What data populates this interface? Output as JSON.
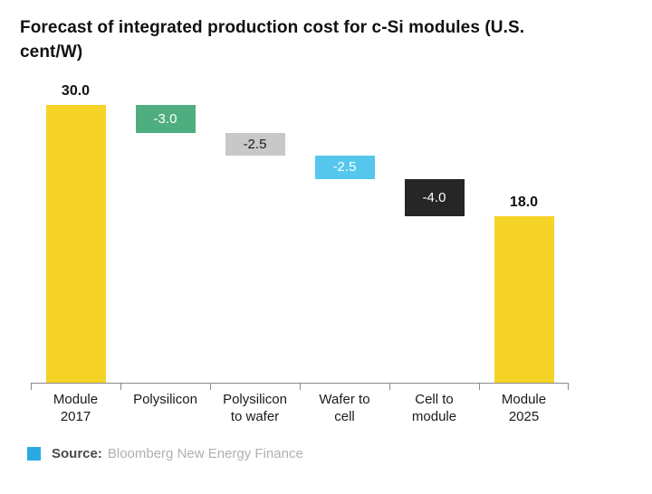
{
  "title": "Forecast of integrated production cost for c-Si modules (U.S. cent/W)",
  "chart_data": {
    "type": "bar",
    "subtype": "waterfall",
    "title": "Forecast of integrated production cost for c-Si modules (U.S. cent/W)",
    "categories": [
      "Module\n2017",
      "Polysilicon",
      "Polysilicon\nto wafer",
      "Wafer to\ncell",
      "Cell to\nmodule",
      "Module\n2025"
    ],
    "values": [
      30.0,
      -3.0,
      -2.5,
      -2.5,
      -4.0,
      18.0
    ],
    "labels": [
      "30.0",
      "-3.0",
      "-2.5",
      "-2.5",
      "-4.0",
      "18.0"
    ],
    "bar_types": [
      "total",
      "delta",
      "delta",
      "delta",
      "delta",
      "total"
    ],
    "bar_colors": [
      "#F5D327",
      "#4FAE7F",
      "#C8C8C8",
      "#56C7EC",
      "#262626",
      "#F5D327"
    ],
    "label_positions": [
      "above",
      "inside",
      "inside",
      "inside",
      "inside",
      "above"
    ],
    "label_colors": [
      "#111111",
      "#ffffff",
      "#1a1a1a",
      "#ffffff",
      "#ffffff",
      "#111111"
    ],
    "ylim": [
      0,
      30
    ],
    "xlabel": "",
    "ylabel": "",
    "grid": false,
    "legend": "none"
  },
  "source": {
    "label": "Source:",
    "text": "Bloomberg New Energy Finance",
    "square_color": "#2BAAE2"
  }
}
